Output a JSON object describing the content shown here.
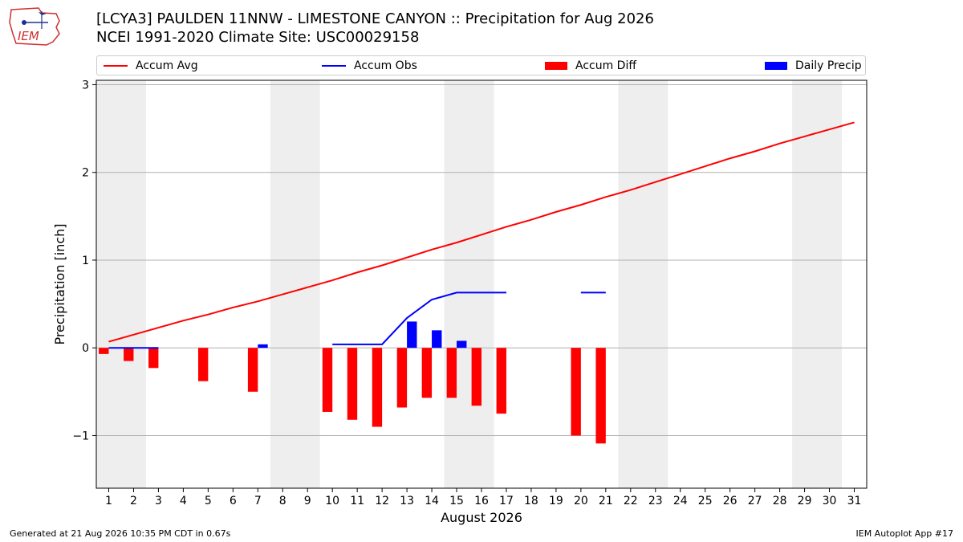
{
  "header": {
    "logo_text": "IEM",
    "title_line1": "[LCYA3] PAULDEN 11NNW - LIMESTONE CANYON :: Precipitation for Aug 2026",
    "title_line2": "NCEI 1991-2020 Climate Site: USC00029158"
  },
  "footer": {
    "generated": "Generated at 21 Aug 2026 10:35 PM CDT in 0.67s",
    "app": "IEM Autoplot App #17"
  },
  "colors": {
    "avg": "#ff0000",
    "obs": "#0000ff",
    "diff": "#ff0000",
    "daily": "#0000ff",
    "weekend": "#eeeeee"
  },
  "chart_data": {
    "type": "bar",
    "xlabel": "August 2026",
    "ylabel": "Precipitation [inch]",
    "xlim": [
      0.5,
      31.5
    ],
    "ylim": [
      -1.6,
      3.05
    ],
    "yticks": [
      -1,
      0,
      1,
      2,
      3
    ],
    "ytick_labels": [
      "−1",
      "0",
      "1",
      "2",
      "3"
    ],
    "grid": "horizontal",
    "legend_placement": "top",
    "weekend_bands": [
      [
        0.5,
        2.5
      ],
      [
        7.5,
        9.5
      ],
      [
        14.5,
        16.5
      ],
      [
        21.5,
        23.5
      ],
      [
        28.5,
        30.5
      ]
    ],
    "days": [
      1,
      2,
      3,
      4,
      5,
      6,
      7,
      8,
      9,
      10,
      11,
      12,
      13,
      14,
      15,
      16,
      17,
      18,
      19,
      20,
      21,
      22,
      23,
      24,
      25,
      26,
      27,
      28,
      29,
      30,
      31
    ],
    "legend": [
      "Accum Avg",
      "Accum Obs",
      "Accum Diff",
      "Daily Precip"
    ],
    "series": [
      {
        "name": "Accum Avg",
        "kind": "line",
        "x": [
          1,
          2,
          3,
          4,
          5,
          6,
          7,
          8,
          9,
          10,
          11,
          12,
          13,
          14,
          15,
          16,
          17,
          18,
          19,
          20,
          21,
          22,
          23,
          24,
          25,
          26,
          27,
          28,
          29,
          30,
          31
        ],
        "values": [
          0.07,
          0.15,
          0.23,
          0.31,
          0.38,
          0.46,
          0.53,
          0.61,
          0.69,
          0.77,
          0.86,
          0.94,
          1.03,
          1.12,
          1.2,
          1.29,
          1.38,
          1.46,
          1.55,
          1.63,
          1.72,
          1.8,
          1.89,
          1.98,
          2.07,
          2.16,
          2.24,
          2.33,
          2.41,
          2.49,
          2.57
        ]
      },
      {
        "name": "Accum Obs",
        "kind": "line",
        "x": [
          1,
          2,
          3,
          4,
          5,
          6,
          7,
          8,
          9,
          10,
          11,
          12,
          13,
          14,
          15,
          16,
          17,
          18,
          19,
          20,
          21,
          22,
          23,
          24,
          25,
          26,
          27,
          28,
          29,
          30,
          31
        ],
        "values": [
          0,
          0,
          0,
          null,
          null,
          null,
          null,
          null,
          null,
          0.04,
          0.04,
          0.04,
          0.34,
          0.55,
          0.63,
          0.63,
          0.63,
          null,
          null,
          0.63,
          0.63,
          null,
          null,
          null,
          null,
          null,
          null,
          null,
          null,
          null,
          null
        ]
      },
      {
        "name": "Accum Diff",
        "kind": "bar",
        "offset": -0.2,
        "x": [
          1,
          2,
          3,
          5,
          7,
          10,
          11,
          12,
          13,
          14,
          15,
          16,
          17,
          20,
          21
        ],
        "values": [
          -0.07,
          -0.15,
          -0.23,
          -0.38,
          -0.5,
          -0.73,
          -0.82,
          -0.9,
          -0.68,
          -0.57,
          -0.57,
          -0.66,
          -0.75,
          -1.0,
          -1.09
        ]
      },
      {
        "name": "Daily Precip",
        "kind": "bar",
        "offset": 0.2,
        "x": [
          7,
          13,
          14,
          15
        ],
        "values": [
          0.04,
          0.3,
          0.2,
          0.08
        ]
      }
    ]
  }
}
